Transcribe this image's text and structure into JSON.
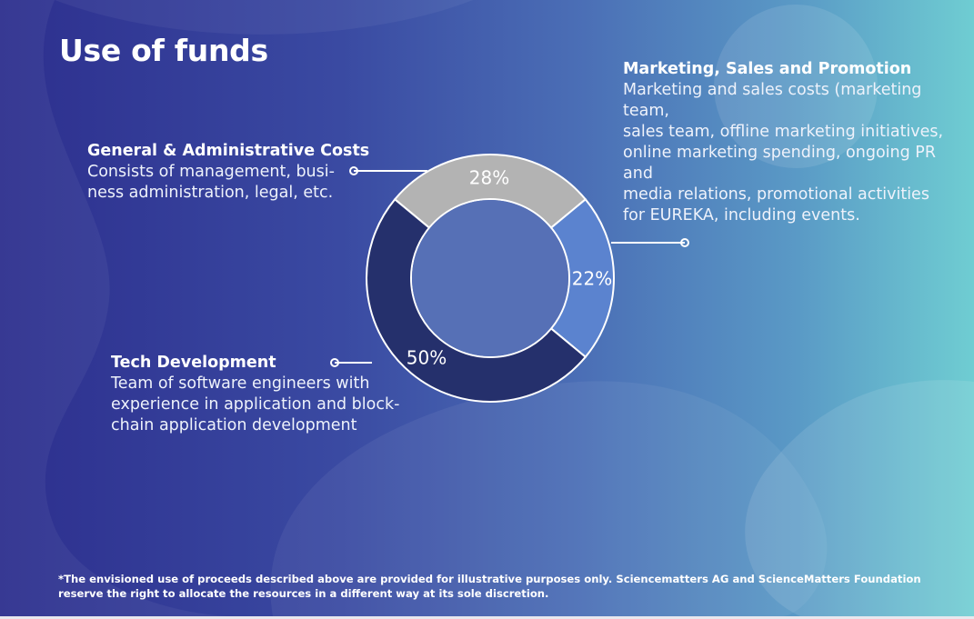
{
  "title": "Use of funds",
  "colors": {
    "general_admin": "#b3b3b3",
    "marketing": "#5b83cf",
    "tech": "#25306c",
    "inner": "#5670b6",
    "outline": "#ffffff"
  },
  "segments": {
    "general_admin": {
      "heading": "General & Administrative Costs",
      "description": "Consists of management, busi-\nness administration, legal, etc."
    },
    "marketing": {
      "heading": "Marketing, Sales and Promotion",
      "description": "Marketing and sales costs (marketing team,\nsales team, offline marketing initiatives, online marketing spending, ongoing PR and\nmedia relations, promotional activities for EUREKA, including events."
    },
    "tech": {
      "heading": "Tech Development",
      "description": "Team of software engineers with experience in application and block-chain application development"
    }
  },
  "chart_data": {
    "type": "pie",
    "variant": "donut",
    "categories": [
      "General & Administrative Costs",
      "Marketing, Sales and Promotion",
      "Tech Development"
    ],
    "values": [
      28,
      22,
      50
    ],
    "labels": [
      "28%",
      "22%",
      "50%"
    ],
    "unit": "%"
  },
  "footnote": "*The envisioned use of proceeds described above are provided for illustrative purposes only. Sciencematters AG and ScienceMatters Foundation reserve the right to allocate the resources in a different way at its sole discretion."
}
